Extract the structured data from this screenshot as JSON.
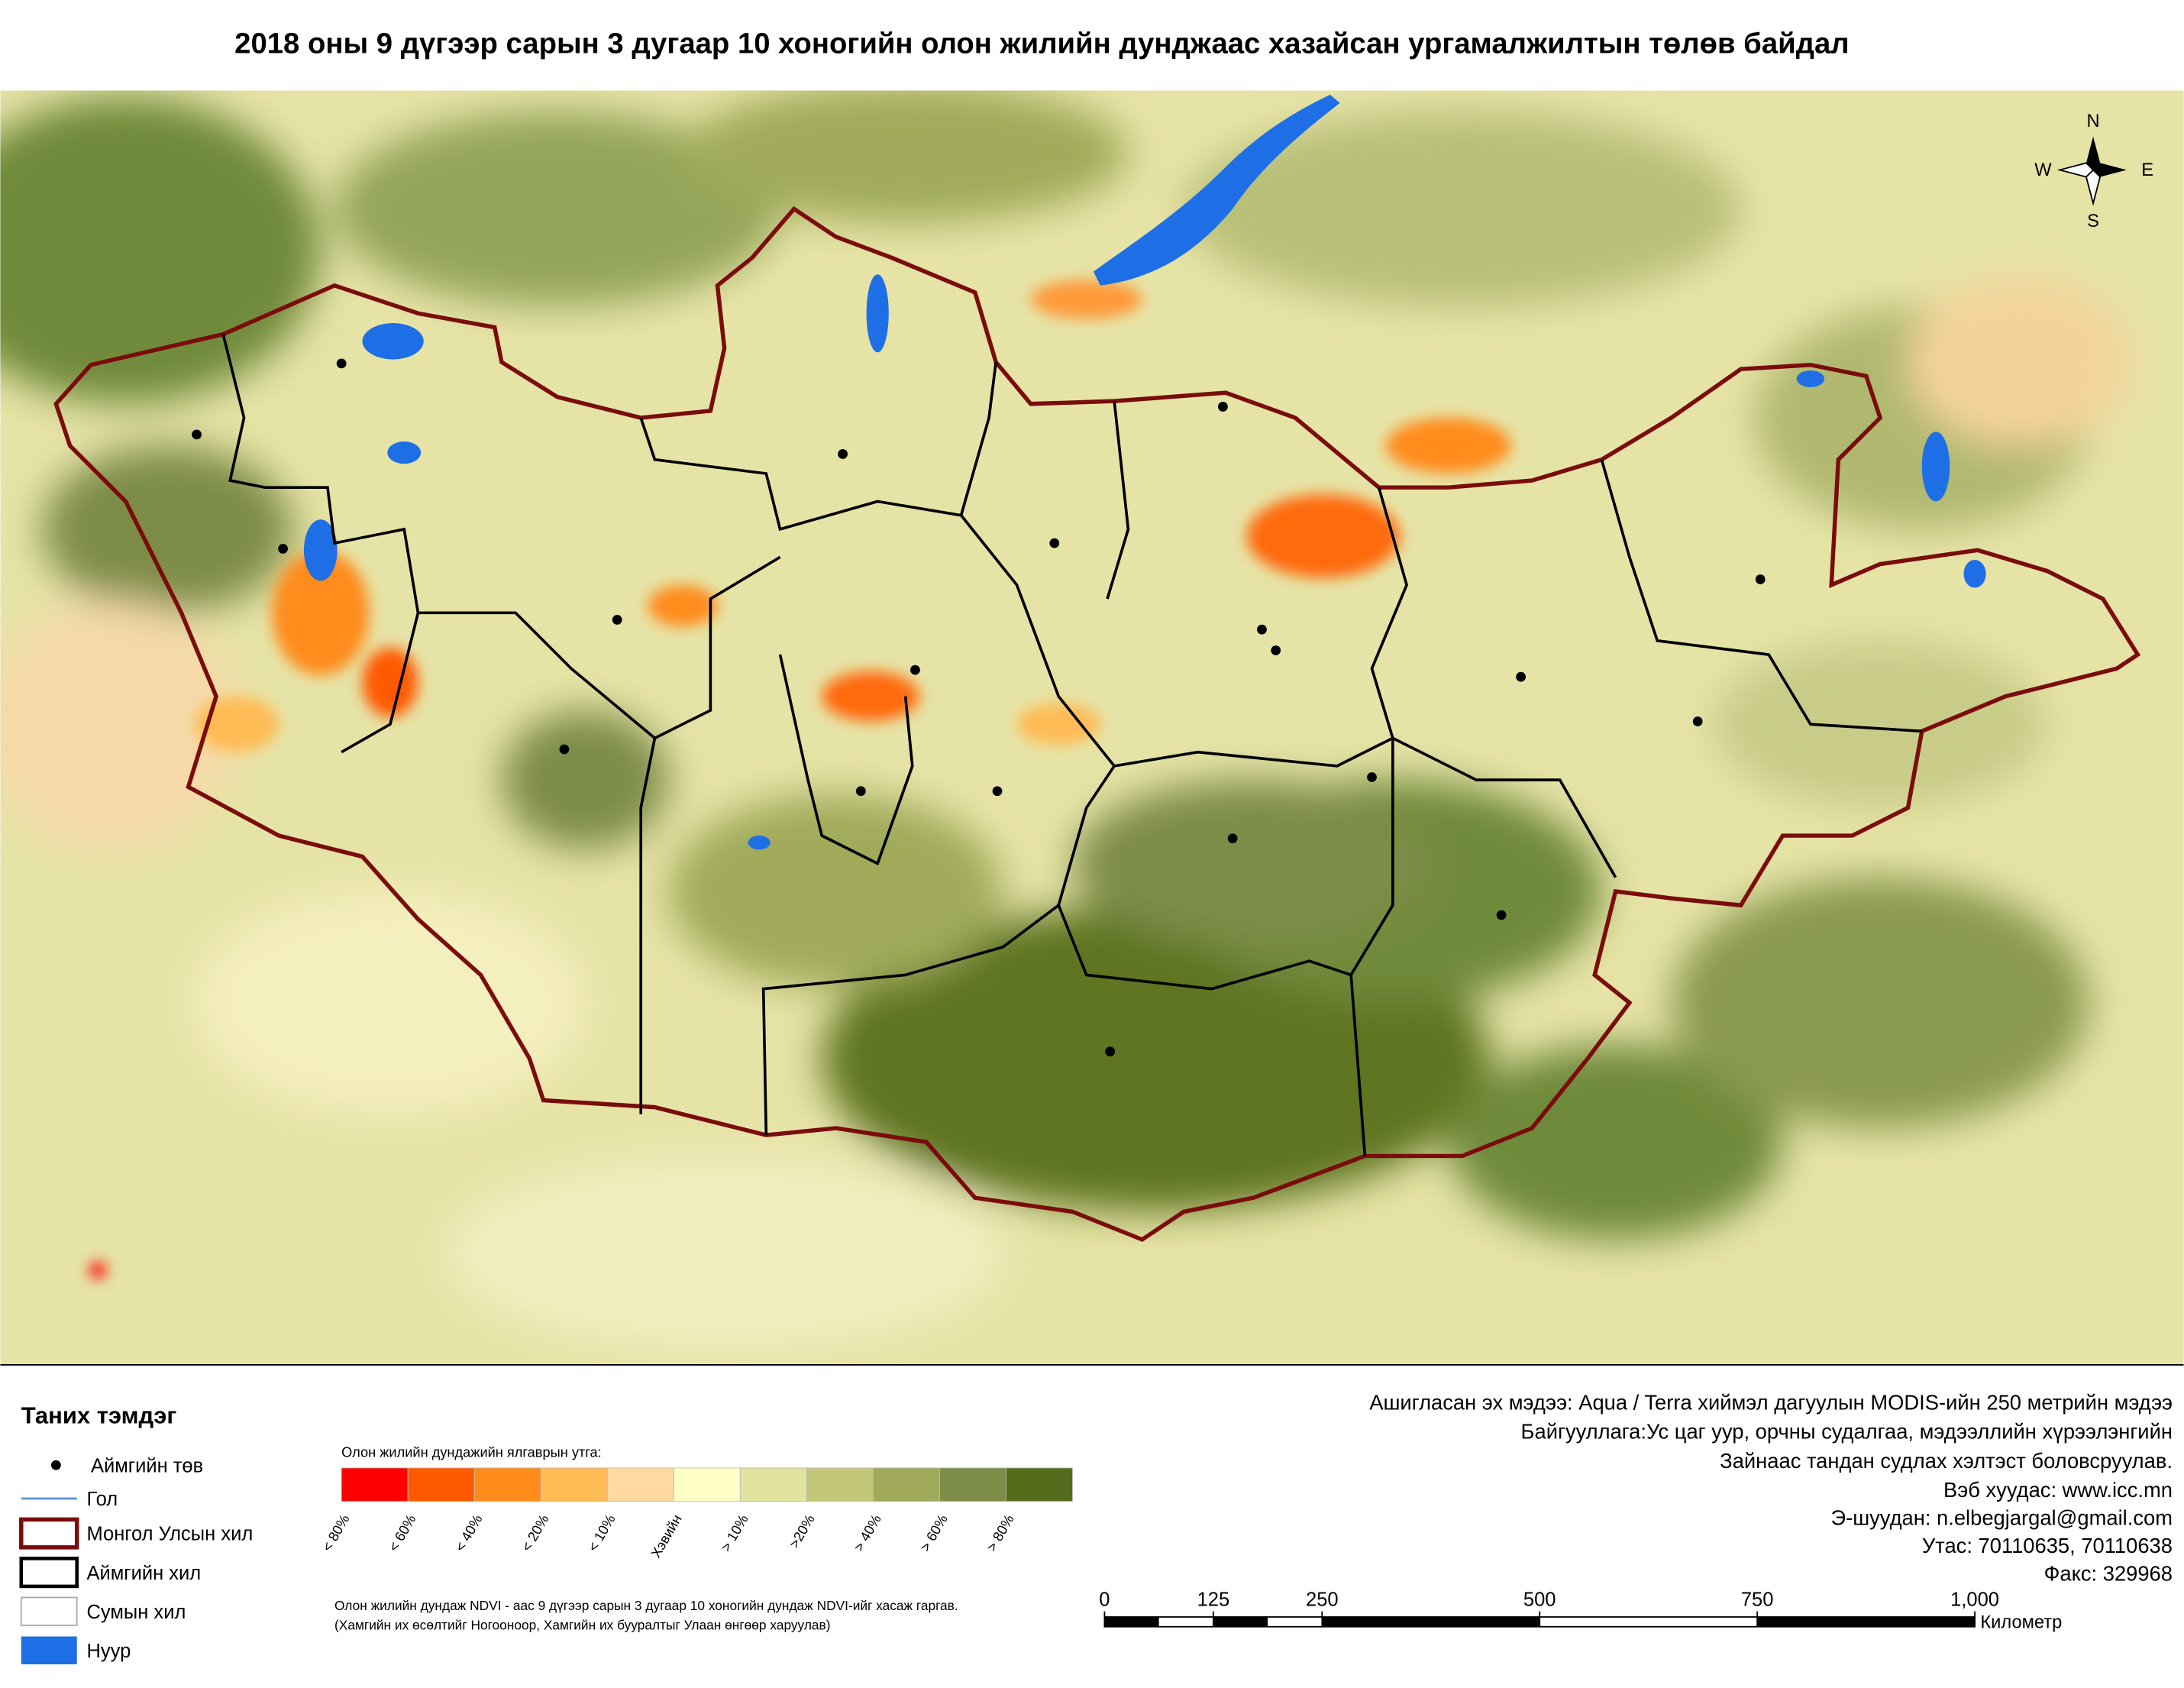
{
  "header": {
    "title": "2018 оны 9 дүгээр сарын 3 дугаар 10 хоногийн олон жилийн дунджаас хазайсан ургамалжилтын төлөв байдал"
  },
  "compass": {
    "north": "N",
    "south": "S",
    "west": "W",
    "east": "E"
  },
  "legend": {
    "title": "Таних тэмдэг",
    "items": [
      "Аймгийн төв",
      "Гол",
      "Монгол Улсын хил",
      "Аймгийн хил",
      "Сумын хил",
      "Нуур"
    ]
  },
  "color_legend": {
    "title": "Олон жилийн дундажийн ялгаврын утга:",
    "classes": [
      {
        "label": "< 80%",
        "color": "#ff0000"
      },
      {
        "label": "< 60%",
        "color": "#ff5a00"
      },
      {
        "label": "< 40%",
        "color": "#ff8c1a"
      },
      {
        "label": "< 20%",
        "color": "#ffbb55"
      },
      {
        "label": "< 10%",
        "color": "#ffd9a0"
      },
      {
        "label": "Хэвийн",
        "color": "#ffffc8"
      },
      {
        "label": "> 10%",
        "color": "#e3e3a0"
      },
      {
        "label": ">20%",
        "color": "#c3c878"
      },
      {
        "label": "> 40%",
        "color": "#a0aa5a"
      },
      {
        "label": "> 60%",
        "color": "#7d8c46"
      },
      {
        "label": "> 80%",
        "color": "#556b1c"
      }
    ]
  },
  "notes": [
    "Олон жилийн дундаж NDVI - аас 9 дүгээр сарын 3 дугаар 10 хоногийн дундаж NDVI-ийг хасаж гаргав.",
    "(Хамгийн их өсөлтийг Ногооноор,  Хамгийн их бууралтыг Улаан өнгөөр харуулав)"
  ],
  "info": [
    "Ашигласан эх мэдээ: Aqua / Terra хиймэл дагуулын MODIS-ийн 250 метрийн мэдээ",
    "Байгууллага:Ус цаг уур, орчны судалгаа, мэдээллийн хүрээлэнгийн",
    "Зайнаас тандан судлах хэлтэст боловсруулав.",
    "Вэб хуудас: www.icc.mn",
    "Э-шуудан: n.elbegjargal@gmail.com",
    "Утас: 70110635, 70110638",
    "Факс: 329968"
  ],
  "scale": {
    "ticks": [
      0,
      125,
      250,
      500,
      750,
      {
        "value": 1000,
        "label": "1,000"
      }
    ],
    "unit": "Километр"
  }
}
